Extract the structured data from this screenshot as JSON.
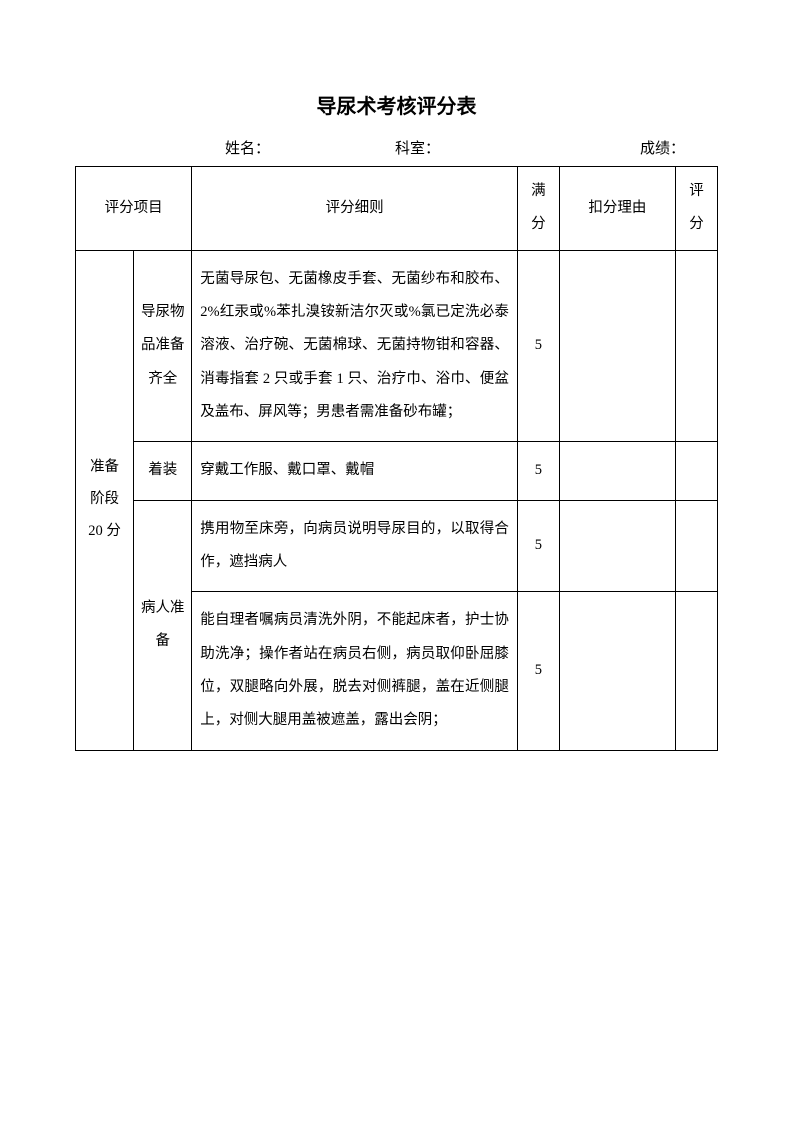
{
  "title": "导尿术考核评分表",
  "info": {
    "name_label": "姓名：",
    "dept_label": "科室：",
    "score_label": "成绩："
  },
  "headers": {
    "category": "评分项目",
    "detail": "评分细则",
    "full": "满分",
    "reason": "扣分理由",
    "score": "评分"
  },
  "section": {
    "category_line1": "准备",
    "category_line2": "阶段",
    "category_line3": "20 分",
    "rows": [
      {
        "sub": "导尿物品准备齐全",
        "detail": "无菌导尿包、无菌橡皮手套、无菌纱布和胶布、2%红汞或%苯扎溴铵新洁尔灭或%氯已定洗必泰溶液、治疗碗、无菌棉球、无菌持物钳和容器、消毒指套 2 只或手套 1 只、治疗巾、浴巾、便盆及盖布、屏风等；男患者需准备砂布罐；",
        "full": "5"
      },
      {
        "sub": "着装",
        "detail": "穿戴工作服、戴口罩、戴帽",
        "full": "5"
      },
      {
        "sub": "",
        "detail": "携用物至床旁，向病员说明导尿目的，以取得合作，遮挡病人",
        "full": "5"
      },
      {
        "sub": "病人准备",
        "detail": "能自理者嘱病员清洗外阴，不能起床者，护士协助洗净；操作者站在病员右侧，病员取仰卧屈膝位，双腿略向外展，脱去对侧裤腿，盖在近侧腿上，对侧大腿用盖被遮盖，露出会阴；",
        "full": "5"
      }
    ]
  }
}
